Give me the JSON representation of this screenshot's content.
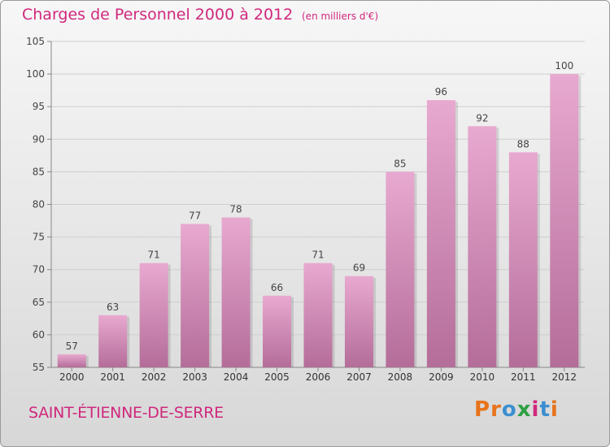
{
  "header": {
    "title": "Charges de Personnel 2000 à 2012",
    "subtitle": "(en milliers d'€)"
  },
  "footer": {
    "city": "SAINT-ÉTIENNE-DE-SERRE",
    "logo": "Proxiti"
  },
  "colors": {
    "accent": "#d0287d",
    "bar_top": "#e8a9d0",
    "bar_bottom": "#b46d99",
    "logo": [
      "#e8731a",
      "#e8731a",
      "#3b8fd0",
      "#2ea043",
      "#d0287d",
      "#3b8fd0",
      "#e8731a"
    ]
  },
  "chart_data": {
    "type": "bar",
    "categories": [
      "2000",
      "2001",
      "2002",
      "2003",
      "2004",
      "2005",
      "2006",
      "2007",
      "2008",
      "2009",
      "2010",
      "2011",
      "2012"
    ],
    "values": [
      57,
      63,
      71,
      77,
      78,
      66,
      71,
      69,
      85,
      96,
      92,
      88,
      100
    ],
    "data_labels": [
      "57",
      "63",
      "71",
      "77",
      "78",
      "66",
      "71",
      "69",
      "85",
      "96",
      "92",
      "88",
      "100"
    ],
    "ylim": [
      55,
      105
    ],
    "yticks": [
      55,
      60,
      65,
      70,
      75,
      80,
      85,
      90,
      95,
      100,
      105
    ],
    "grid": true,
    "title": "Charges de Personnel 2000 à 2012",
    "xlabel": "",
    "ylabel": ""
  }
}
